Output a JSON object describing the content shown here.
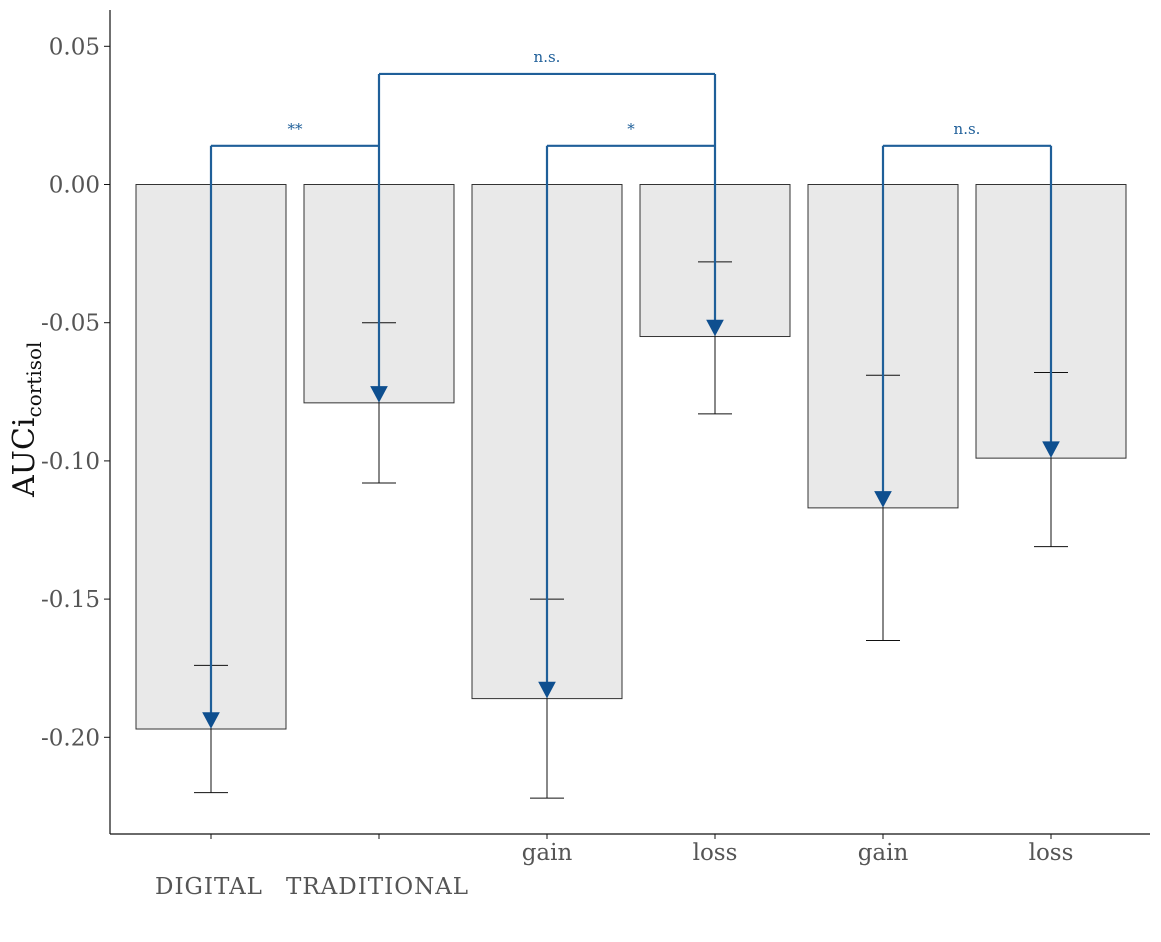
{
  "chart_data": {
    "type": "bar",
    "categories": [
      "",
      "",
      "gain",
      "loss",
      "gain",
      "loss"
    ],
    "group_labels": [
      "DIGITAL",
      "TRADITIONAL"
    ],
    "values": [
      -0.197,
      -0.079,
      -0.186,
      -0.055,
      -0.117,
      -0.099
    ],
    "error_bars": [
      {
        "low": -0.22,
        "high": -0.174
      },
      {
        "low": -0.108,
        "high": -0.05
      },
      {
        "low": -0.222,
        "high": -0.15
      },
      {
        "low": -0.083,
        "high": -0.028
      },
      {
        "low": -0.165,
        "high": -0.069
      },
      {
        "low": -0.131,
        "high": -0.068
      }
    ],
    "markers": [
      -0.194,
      -0.076,
      -0.183,
      -0.052,
      -0.114,
      -0.096
    ],
    "comparisons": [
      {
        "from": 0,
        "to": 1,
        "y": 0.014,
        "label": "**"
      },
      {
        "from": 2,
        "to": 3,
        "y": 0.014,
        "label": "*"
      },
      {
        "from": 4,
        "to": 5,
        "y": 0.014,
        "label": "n.s."
      },
      {
        "from": 1,
        "to": 3,
        "y": 0.04,
        "label": "n.s."
      }
    ],
    "ylabel_main": "AUCi",
    "ylabel_sub": "cortisol",
    "xlabel": "",
    "yticks": [
      "0.05",
      "0.00",
      "-0.05",
      "-0.10",
      "-0.15",
      "-0.20"
    ],
    "ytick_values": [
      0.05,
      0.0,
      -0.05,
      -0.1,
      -0.15,
      -0.2
    ],
    "ylim": [
      -0.234,
      0.063
    ],
    "grid": false,
    "colors": {
      "bar_fill": "#e9e9e9",
      "bar_stroke": "#333333",
      "error_bar": "#111111",
      "comparison": "#1f5f99",
      "marker": "#0e4f8f",
      "axis": "#111111"
    }
  }
}
